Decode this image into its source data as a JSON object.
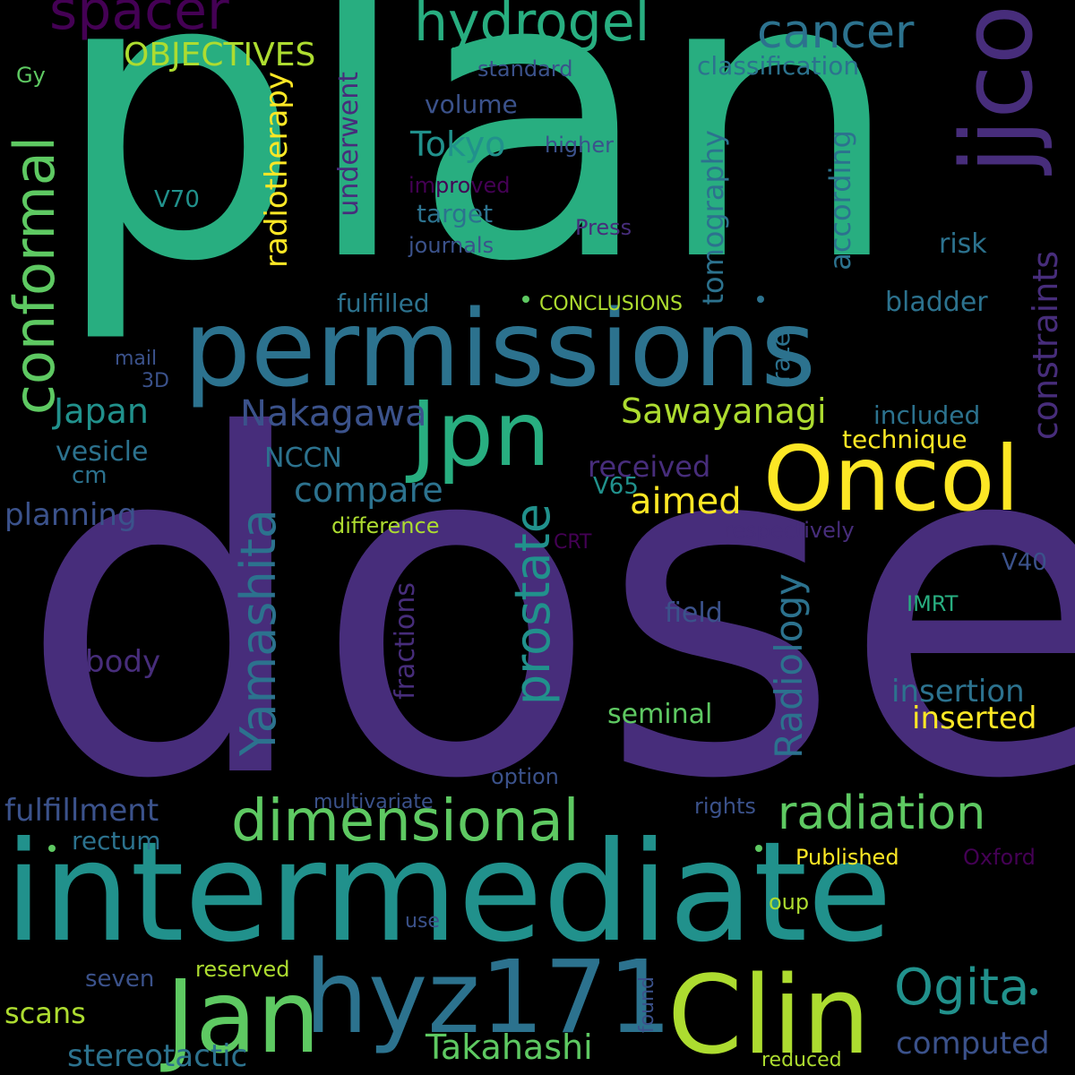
{
  "background": "#000000",
  "palette": {
    "dark_purple": "#440154",
    "purple": "#472d7b",
    "indigo": "#3b528b",
    "blue": "#2c728e",
    "teal": "#21918c",
    "green_teal": "#28ae80",
    "green": "#5ec962",
    "lime": "#addc30",
    "yellow": "#fde725"
  },
  "words": {
    "plan": "plan",
    "dose": "dose",
    "intermediate": "intermediate",
    "permissions": "permissions",
    "Oncol": "Oncol",
    "jjco": "jjco",
    "Clin": "Clin",
    "Jan": "Jan",
    "hyz171": "hyz171",
    "Jpn": "Jpn",
    "conformal": "conformal",
    "dimensional": "dimensional",
    "radiation": "radiation",
    "prostate": "prostate",
    "Yamashita": "Yamashita",
    "hydrogel": "hydrogel",
    "spacer": "spacer",
    "cancer": "cancer",
    "Ogita": "Ogita",
    "Radiology": "Radiology",
    "Nakagawa": "Nakagawa",
    "Sawayanagi": "Sawayanagi",
    "Takahashi": "Takahashi",
    "constraints": "constraints",
    "OBJECTIVES": "OBJECTIVES",
    "Tokyo": "Tokyo",
    "Japan": "Japan",
    "compare": "compare",
    "aimed": "aimed",
    "radiotherapy": "radiotherapy",
    "tomography": "tomography",
    "according": "according",
    "computed": "computed",
    "fulfillment": "fulfillment",
    "planning": "planning",
    "stereotactic": "stereotactic",
    "insertion": "insertion",
    "inserted": "inserted",
    "received": "received",
    "classification": "classification",
    "seminal": "seminal",
    "fractions": "fractions",
    "field": "field",
    "body": "body",
    "rectum": "rectum",
    "scans": "scans",
    "Gy": "Gy",
    "standard": "standard",
    "volume": "volume",
    "higher": "higher",
    "improved": "improved",
    "target": "target",
    "journals": "journals",
    "Press": "Press",
    "V70": "V70",
    "underwent": "underwent",
    "risk": "risk",
    "fulfilled": "fulfilled",
    "CONCLUSIONS": "CONCLUSIONS",
    "bladder": "bladder",
    "rate": "rate",
    "mail": "mail",
    "3D": "3D",
    "included": "included",
    "technique": "technique",
    "vesicle": "vesicle",
    "NCCN": "NCCN",
    "cm": "cm",
    "V65": "V65",
    "difference": "difference",
    "CRT": "CRT",
    "respectively": "respectively",
    "V40": "V40",
    "IMRT": "IMRT",
    "option": "option",
    "multivariate": "multivariate",
    "rights": "rights",
    "Published": "Published",
    "Oxford": "Oxford",
    "oup": "oup",
    "use": "use",
    "reserved": "reserved",
    "seven": "seven",
    "found": "found",
    "reduced": "reduced"
  }
}
